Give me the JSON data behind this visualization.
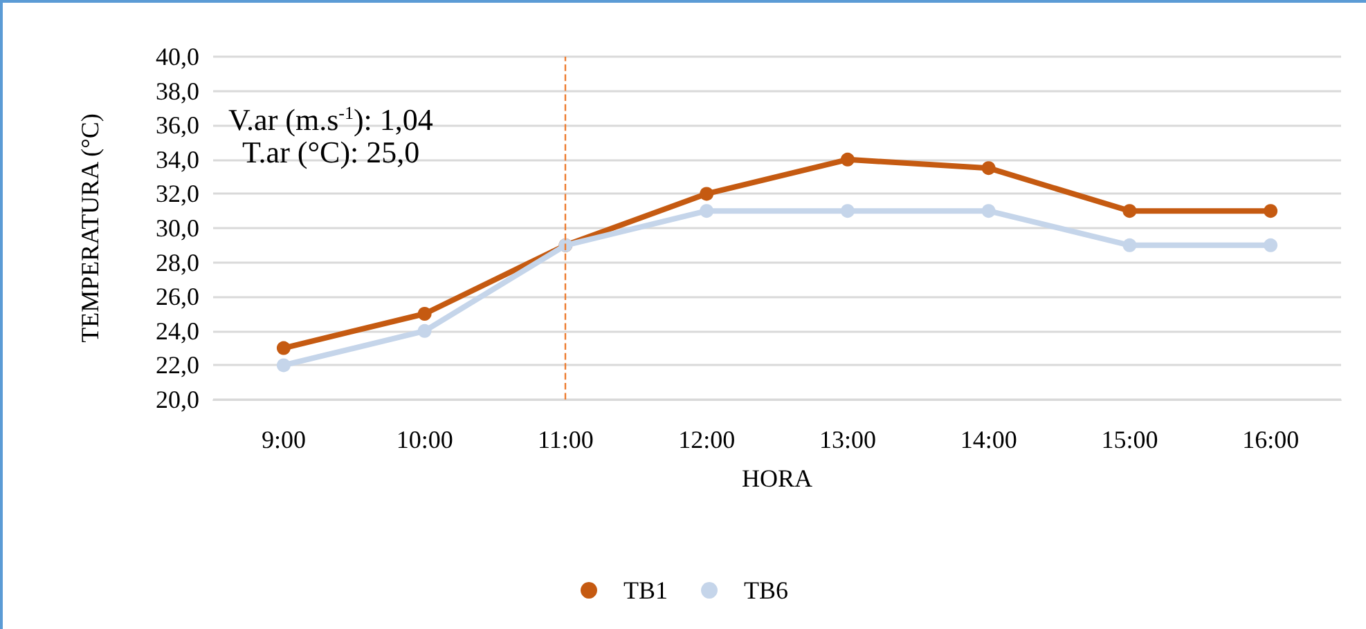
{
  "chart_data": {
    "type": "line",
    "xlabel": "HORA",
    "ylabel": "TEMPERATURA (°C)",
    "categories": [
      "9:00",
      "10:00",
      "11:00",
      "12:00",
      "13:00",
      "14:00",
      "15:00",
      "16:00"
    ],
    "series": [
      {
        "name": "TB1",
        "color": "#c55a11",
        "values": [
          23,
          25,
          29,
          32,
          34,
          33.5,
          31,
          31
        ]
      },
      {
        "name": "TB6",
        "color": "#c5d5ea",
        "values": [
          22,
          24,
          29,
          31,
          31,
          31,
          29,
          29
        ]
      }
    ],
    "ylim": [
      20,
      40
    ],
    "yticks": [
      {
        "value": 20,
        "label": "20,0"
      },
      {
        "value": 22,
        "label": "22,0"
      },
      {
        "value": 24,
        "label": "24,0"
      },
      {
        "value": 26,
        "label": "26,0"
      },
      {
        "value": 28,
        "label": "28,0"
      },
      {
        "value": 30,
        "label": "30,0"
      },
      {
        "value": 32,
        "label": "32,0"
      },
      {
        "value": 34,
        "label": "34,0"
      },
      {
        "value": 36,
        "label": "36,0"
      },
      {
        "value": 38,
        "label": "38,0"
      },
      {
        "value": 40,
        "label": "40,0"
      }
    ],
    "ref_lines": [
      {
        "axis": "x",
        "value": "11:00",
        "color": "#ed7d31",
        "line_style": "dashed"
      }
    ],
    "annotations": [
      "V.ar (m.s$^{-1}$): 1,04",
      "T.ar (°C): 25,0"
    ],
    "grid": "y",
    "legend": "bottom",
    "marker": "circle",
    "line_style": "solid"
  }
}
